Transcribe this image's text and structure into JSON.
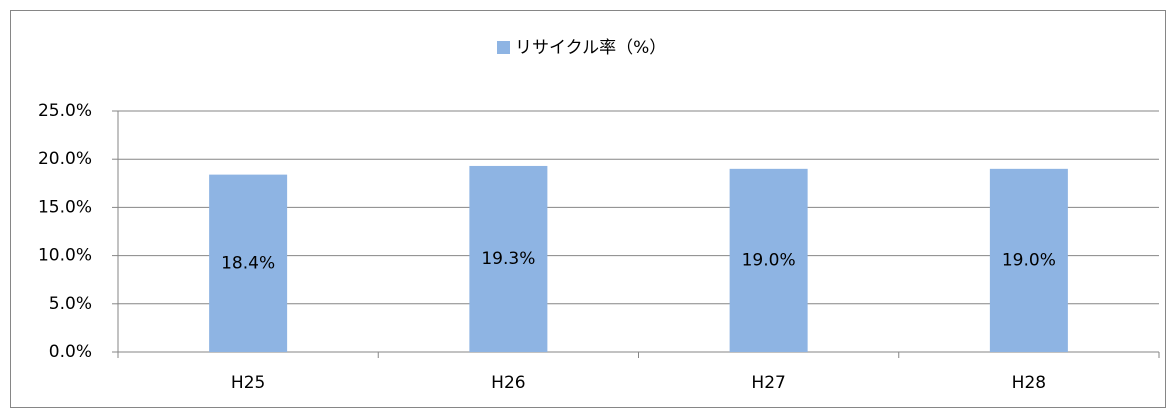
{
  "chart_data": {
    "type": "bar",
    "categories": [
      "H25",
      "H26",
      "H27",
      "H28"
    ],
    "series": [
      {
        "name": "リサイクル率（%）",
        "color": "#8eb4e3",
        "values": [
          18.4,
          19.3,
          19.0,
          19.0
        ],
        "value_labels": [
          "18.4%",
          "19.3%",
          "19.0%",
          "19.0%"
        ]
      }
    ],
    "ylim": [
      0,
      25
    ],
    "yticks": [
      {
        "value": 0,
        "label": "0.0%"
      },
      {
        "value": 5,
        "label": "5.0%"
      },
      {
        "value": 10,
        "label": "10.0%"
      },
      {
        "value": 15,
        "label": "15.0%"
      },
      {
        "value": 20,
        "label": "20.0%"
      },
      {
        "value": 25,
        "label": "25.0%"
      }
    ],
    "grid": true,
    "legend": "top"
  }
}
